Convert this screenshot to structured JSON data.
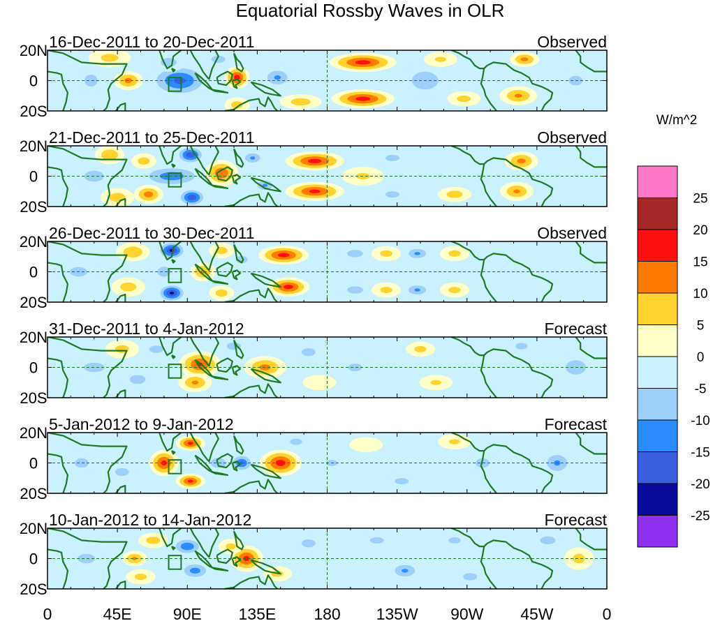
{
  "chart_data": {
    "type": "heatmap",
    "title": "Equatorial Rossby Waves in OLR",
    "units_label": "W/m^2",
    "x_ticks": [
      "0",
      "45E",
      "90E",
      "135E",
      "180",
      "135W",
      "90W",
      "45W",
      "0"
    ],
    "x_range_deg": [
      0,
      360
    ],
    "y_ticks": [
      "20N",
      "0",
      "20S"
    ],
    "y_range_deg": [
      -20,
      20
    ],
    "colorbar": {
      "levels": [
        -25,
        -20,
        -15,
        -10,
        -5,
        0,
        5,
        10,
        15,
        20,
        25
      ],
      "tick_labels": [
        "25",
        "20",
        "15",
        "10",
        "5",
        "0",
        "-5",
        "-10",
        "-15",
        "-20",
        "-25"
      ],
      "colors_top_to_bottom": [
        "#ff77c8",
        "#a42828",
        "#ff1010",
        "#ff7a00",
        "#ffd230",
        "#ffffc8",
        "#c9f1ff",
        "#9ccffa",
        "#2a8cff",
        "#3a60e0",
        "#0a0a9a",
        "#8f2ff0"
      ]
    },
    "contour_colors": {
      "pos1": "#ffffc8",
      "pos2": "#ffd230",
      "pos3": "#ff7a00",
      "pos4": "#ff1010",
      "pos5": "#a42828",
      "neg1": "#c9f1ff",
      "neg2": "#9ccffa",
      "neg3": "#2a8cff",
      "neg4": "#3a60e0",
      "neg5": "#0a0a9a"
    },
    "panels": [
      {
        "period": "16-Dec-2011 to 20-Dec-2011",
        "kind": "Observed",
        "anomalies": [
          {
            "lon": 40,
            "lat": 15,
            "amp": 6,
            "slon": 10,
            "slat": 5
          },
          {
            "lon": 52,
            "lat": 0,
            "amp": 11,
            "slon": 7,
            "slat": 5
          },
          {
            "lon": 28,
            "lat": 0,
            "amp": -8,
            "slon": 6,
            "slat": 6
          },
          {
            "lon": 85,
            "lat": 0,
            "amp": -16,
            "slon": 15,
            "slat": 9
          },
          {
            "lon": 78,
            "lat": 12,
            "amp": -7,
            "slon": 8,
            "slat": 5
          },
          {
            "lon": 110,
            "lat": 14,
            "amp": -7,
            "slon": 7,
            "slat": 4
          },
          {
            "lon": 122,
            "lat": 2,
            "amp": 17,
            "slon": 6,
            "slat": 6
          },
          {
            "lon": 122,
            "lat": -16,
            "amp": 7,
            "slon": 6,
            "slat": 4
          },
          {
            "lon": 148,
            "lat": 2,
            "amp": -10,
            "slon": 8,
            "slat": 6
          },
          {
            "lon": 163,
            "lat": -14,
            "amp": 7,
            "slon": 10,
            "slat": 4
          },
          {
            "lon": 203,
            "lat": 12,
            "amp": 17,
            "slon": 16,
            "slat": 5
          },
          {
            "lon": 203,
            "lat": -12,
            "amp": 17,
            "slon": 15,
            "slat": 5
          },
          {
            "lon": 243,
            "lat": 0,
            "amp": -8,
            "slon": 12,
            "slat": 9
          },
          {
            "lon": 253,
            "lat": 14,
            "amp": 5,
            "slon": 8,
            "slat": 4
          },
          {
            "lon": 268,
            "lat": -12,
            "amp": 6,
            "slon": 8,
            "slat": 4
          },
          {
            "lon": 303,
            "lat": -10,
            "amp": 10,
            "slon": 9,
            "slat": 5
          },
          {
            "lon": 307,
            "lat": 14,
            "amp": 11,
            "slon": 7,
            "slat": 4
          },
          {
            "lon": 340,
            "lat": 0,
            "amp": -6,
            "slon": 8,
            "slat": 6
          }
        ]
      },
      {
        "period": "21-Dec-2011 to 25-Dec-2011",
        "kind": "Observed",
        "anomalies": [
          {
            "lon": 30,
            "lat": 0,
            "amp": -7,
            "slon": 10,
            "slat": 6
          },
          {
            "lon": 40,
            "lat": 14,
            "amp": 9,
            "slon": 7,
            "slat": 5
          },
          {
            "lon": 45,
            "lat": -14,
            "amp": 7,
            "slon": 8,
            "slat": 5
          },
          {
            "lon": 65,
            "lat": -12,
            "amp": 12,
            "slon": 7,
            "slat": 5
          },
          {
            "lon": 62,
            "lat": 10,
            "amp": 7,
            "slon": 6,
            "slat": 4
          },
          {
            "lon": 80,
            "lat": 0,
            "amp": -13,
            "slon": 16,
            "slat": 6
          },
          {
            "lon": 92,
            "lat": 14,
            "amp": -19,
            "slon": 7,
            "slat": 5
          },
          {
            "lon": 93,
            "lat": -14,
            "amp": -19,
            "slon": 7,
            "slat": 5
          },
          {
            "lon": 112,
            "lat": 2,
            "amp": 14,
            "slon": 8,
            "slat": 7
          },
          {
            "lon": 132,
            "lat": 12,
            "amp": -10,
            "slon": 6,
            "slat": 4
          },
          {
            "lon": 140,
            "lat": -6,
            "amp": -10,
            "slon": 6,
            "slat": 4
          },
          {
            "lon": 172,
            "lat": 10,
            "amp": 17,
            "slon": 14,
            "slat": 5
          },
          {
            "lon": 172,
            "lat": -10,
            "amp": 16,
            "slon": 14,
            "slat": 5
          },
          {
            "lon": 203,
            "lat": 0,
            "amp": 5,
            "slon": 10,
            "slat": 5
          },
          {
            "lon": 222,
            "lat": 12,
            "amp": -6,
            "slon": 8,
            "slat": 4
          },
          {
            "lon": 222,
            "lat": -12,
            "amp": -6,
            "slon": 8,
            "slat": 4
          },
          {
            "lon": 262,
            "lat": -12,
            "amp": 7,
            "slon": 8,
            "slat": 4
          },
          {
            "lon": 305,
            "lat": 10,
            "amp": 11,
            "slon": 8,
            "slat": 5
          },
          {
            "lon": 302,
            "lat": -10,
            "amp": 10,
            "slon": 8,
            "slat": 5
          }
        ]
      },
      {
        "period": "26-Dec-2011 to 30-Dec-2011",
        "kind": "Observed",
        "anomalies": [
          {
            "lon": 20,
            "lat": 0,
            "amp": -6,
            "slon": 10,
            "slat": 6
          },
          {
            "lon": 55,
            "lat": 13,
            "amp": 9,
            "slon": 8,
            "slat": 5
          },
          {
            "lon": 52,
            "lat": -10,
            "amp": 7,
            "slon": 8,
            "slat": 5
          },
          {
            "lon": 80,
            "lat": 14,
            "amp": -21,
            "slon": 7,
            "slat": 5
          },
          {
            "lon": 80,
            "lat": -14,
            "amp": -21,
            "slon": 7,
            "slat": 5
          },
          {
            "lon": 75,
            "lat": 0,
            "amp": -8,
            "slon": 6,
            "slat": 5
          },
          {
            "lon": 100,
            "lat": 0,
            "amp": 10,
            "slon": 6,
            "slat": 5
          },
          {
            "lon": 112,
            "lat": 14,
            "amp": 7,
            "slon": 6,
            "slat": 4
          },
          {
            "lon": 112,
            "lat": -14,
            "amp": 7,
            "slon": 6,
            "slat": 4
          },
          {
            "lon": 125,
            "lat": 8,
            "amp": -7,
            "slon": 6,
            "slat": 4
          },
          {
            "lon": 152,
            "lat": 11,
            "amp": 17,
            "slon": 12,
            "slat": 5
          },
          {
            "lon": 155,
            "lat": -10,
            "amp": 17,
            "slon": 10,
            "slat": 5
          },
          {
            "lon": 198,
            "lat": 12,
            "amp": -7,
            "slon": 8,
            "slat": 4
          },
          {
            "lon": 198,
            "lat": -12,
            "amp": -7,
            "slon": 8,
            "slat": 4
          },
          {
            "lon": 218,
            "lat": 12,
            "amp": 6,
            "slon": 7,
            "slat": 4
          },
          {
            "lon": 218,
            "lat": -12,
            "amp": 6,
            "slon": 7,
            "slat": 4
          },
          {
            "lon": 238,
            "lat": 12,
            "amp": -10,
            "slon": 7,
            "slat": 4
          },
          {
            "lon": 238,
            "lat": -12,
            "amp": -10,
            "slon": 7,
            "slat": 4
          },
          {
            "lon": 262,
            "lat": 12,
            "amp": 6,
            "slon": 7,
            "slat": 4
          },
          {
            "lon": 262,
            "lat": -12,
            "amp": 6,
            "slon": 7,
            "slat": 4
          }
        ]
      },
      {
        "period": "31-Dec-2011 to 4-Jan-2012",
        "kind": "Forecast",
        "anomalies": [
          {
            "lon": 30,
            "lat": 0,
            "amp": -6,
            "slon": 12,
            "slat": 6
          },
          {
            "lon": 48,
            "lat": 12,
            "amp": 6,
            "slon": 8,
            "slat": 5
          },
          {
            "lon": 58,
            "lat": -8,
            "amp": -7,
            "slon": 8,
            "slat": 5
          },
          {
            "lon": 70,
            "lat": 12,
            "amp": -7,
            "slon": 7,
            "slat": 4
          },
          {
            "lon": 98,
            "lat": 2,
            "amp": 15,
            "slon": 10,
            "slat": 7
          },
          {
            "lon": 95,
            "lat": -10,
            "amp": 10,
            "slon": 8,
            "slat": 5
          },
          {
            "lon": 120,
            "lat": 14,
            "amp": -7,
            "slon": 7,
            "slat": 4
          },
          {
            "lon": 140,
            "lat": 0,
            "amp": 11,
            "slon": 10,
            "slat": 6
          },
          {
            "lon": 168,
            "lat": 10,
            "amp": -6,
            "slon": 8,
            "slat": 5
          },
          {
            "lon": 175,
            "lat": -10,
            "amp": 4,
            "slon": 8,
            "slat": 4
          },
          {
            "lon": 198,
            "lat": 0,
            "amp": -5,
            "slon": 10,
            "slat": 6
          },
          {
            "lon": 240,
            "lat": 12,
            "amp": 6,
            "slon": 7,
            "slat": 4
          },
          {
            "lon": 250,
            "lat": -10,
            "amp": 5,
            "slon": 8,
            "slat": 4
          },
          {
            "lon": 305,
            "lat": 14,
            "amp": -6,
            "slon": 7,
            "slat": 4
          },
          {
            "lon": 340,
            "lat": 0,
            "amp": -7,
            "slon": 10,
            "slat": 8
          }
        ]
      },
      {
        "period": "5-Jan-2012 to 9-Jan-2012",
        "kind": "Forecast",
        "anomalies": [
          {
            "lon": 22,
            "lat": 0,
            "amp": -6,
            "slon": 8,
            "slat": 6
          },
          {
            "lon": 48,
            "lat": -6,
            "amp": -6,
            "slon": 8,
            "slat": 5
          },
          {
            "lon": 75,
            "lat": 0,
            "amp": 16,
            "slon": 7,
            "slat": 7
          },
          {
            "lon": 92,
            "lat": 13,
            "amp": 16,
            "slon": 7,
            "slat": 4
          },
          {
            "lon": 92,
            "lat": -12,
            "amp": 16,
            "slon": 7,
            "slat": 4
          },
          {
            "lon": 110,
            "lat": 0,
            "amp": -8,
            "slon": 7,
            "slat": 5
          },
          {
            "lon": 125,
            "lat": 0,
            "amp": -15,
            "slon": 6,
            "slat": 5
          },
          {
            "lon": 150,
            "lat": 0,
            "amp": 17,
            "slon": 10,
            "slat": 7
          },
          {
            "lon": 160,
            "lat": 14,
            "amp": -6,
            "slon": 7,
            "slat": 4
          },
          {
            "lon": 183,
            "lat": 0,
            "amp": -5,
            "slon": 8,
            "slat": 5
          },
          {
            "lon": 205,
            "lat": 12,
            "amp": 4,
            "slon": 8,
            "slat": 4
          },
          {
            "lon": 228,
            "lat": -12,
            "amp": -6,
            "slon": 8,
            "slat": 4
          },
          {
            "lon": 262,
            "lat": 14,
            "amp": 5,
            "slon": 8,
            "slat": 4
          },
          {
            "lon": 280,
            "lat": 0,
            "amp": -6,
            "slon": 8,
            "slat": 6
          },
          {
            "lon": 328,
            "lat": 0,
            "amp": -10,
            "slon": 8,
            "slat": 7
          }
        ]
      },
      {
        "period": "10-Jan-2012 to 14-Jan-2012",
        "kind": "Forecast",
        "anomalies": [
          {
            "lon": 25,
            "lat": 0,
            "amp": -6,
            "slon": 10,
            "slat": 6
          },
          {
            "lon": 56,
            "lat": 0,
            "amp": 10,
            "slon": 6,
            "slat": 4
          },
          {
            "lon": 68,
            "lat": 12,
            "amp": 7,
            "slon": 7,
            "slat": 4
          },
          {
            "lon": 60,
            "lat": -12,
            "amp": 6,
            "slon": 7,
            "slat": 4
          },
          {
            "lon": 90,
            "lat": 8,
            "amp": -14,
            "slon": 8,
            "slat": 5
          },
          {
            "lon": 95,
            "lat": -8,
            "amp": -12,
            "slon": 8,
            "slat": 5
          },
          {
            "lon": 118,
            "lat": 8,
            "amp": 6,
            "slon": 6,
            "slat": 4
          },
          {
            "lon": 128,
            "lat": 0,
            "amp": 16,
            "slon": 8,
            "slat": 7
          },
          {
            "lon": 148,
            "lat": -10,
            "amp": 6,
            "slon": 7,
            "slat": 4
          },
          {
            "lon": 168,
            "lat": 10,
            "amp": -6,
            "slon": 8,
            "slat": 5
          },
          {
            "lon": 212,
            "lat": 12,
            "amp": -6,
            "slon": 8,
            "slat": 4
          },
          {
            "lon": 230,
            "lat": -8,
            "amp": -10,
            "slon": 8,
            "slat": 5
          },
          {
            "lon": 262,
            "lat": 12,
            "amp": -6,
            "slon": 7,
            "slat": 4
          },
          {
            "lon": 272,
            "lat": -12,
            "amp": -7,
            "slon": 7,
            "slat": 4
          },
          {
            "lon": 322,
            "lat": 12,
            "amp": -8,
            "slon": 7,
            "slat": 4
          },
          {
            "lon": 342,
            "lat": 0,
            "amp": 6,
            "slon": 7,
            "slat": 6
          }
        ]
      }
    ]
  }
}
